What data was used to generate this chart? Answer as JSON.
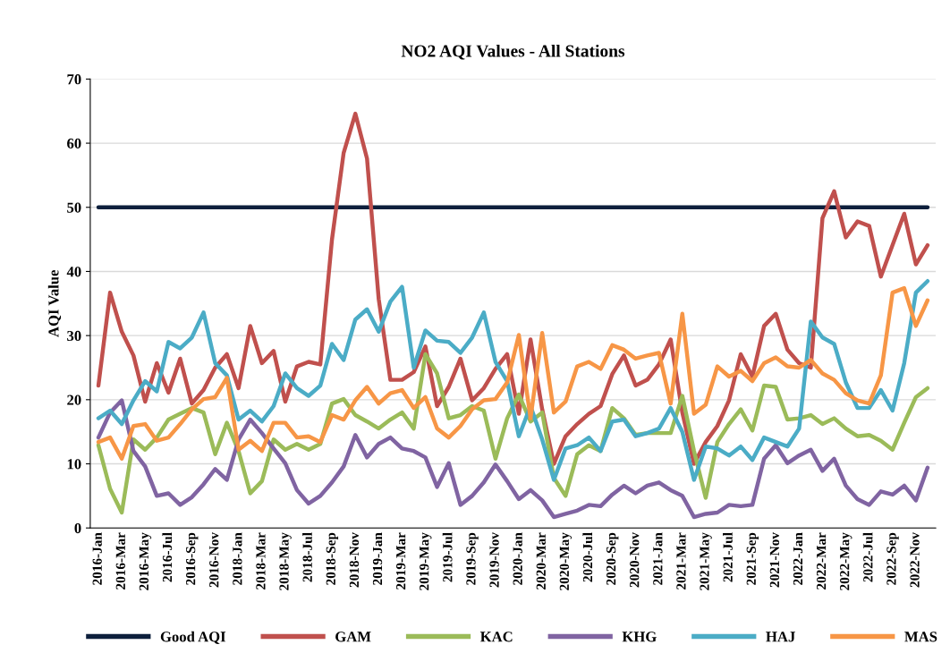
{
  "chart_data": {
    "type": "line",
    "title": "NO2 AQI Values - All Stations",
    "ylabel": "AQI Value",
    "categories": [
      "2016-Jan",
      null,
      "2016-Mar",
      null,
      "2016-May",
      null,
      "2016-Jul",
      null,
      "2016-Sep",
      null,
      "2016-Nov",
      null,
      "2018-Jan",
      null,
      "2018-Mar",
      null,
      "2018-May",
      null,
      "2018-Jul",
      null,
      "2018-Sep",
      null,
      "2018-Nov",
      null,
      "2019-Jan",
      null,
      "2019-Mar",
      null,
      "2019-May",
      null,
      "2019-Jul",
      null,
      "2019-Sep",
      null,
      "2019-Nov",
      null,
      "2020-Jan",
      null,
      "2020-Mar",
      null,
      "2020-May",
      null,
      "2020-Jul",
      null,
      "2020-Sep",
      null,
      "2020-Nov",
      null,
      "2021-Jan",
      null,
      "2021-Mar",
      null,
      "2021-May",
      null,
      "2021-Jul",
      null,
      "2021-Sep",
      null,
      "2021-Nov",
      null,
      "2022-Jan",
      null,
      "2022-Mar",
      null,
      "2022-May",
      null,
      "2022-Jul",
      null,
      "2022-Sep",
      null,
      "2022-Nov",
      null
    ],
    "ylim": [
      0,
      70
    ],
    "yticks": [
      0,
      10,
      20,
      30,
      40,
      50,
      60,
      70
    ],
    "grid": "y",
    "legend": "bottom",
    "marker": "none",
    "line_style": "solid",
    "series": [
      {
        "name": "Good AQI",
        "color": "#0d1f3c",
        "values": [
          50,
          50,
          50,
          50,
          50,
          50,
          50,
          50,
          50,
          50,
          50,
          50,
          50,
          50,
          50,
          50,
          50,
          50,
          50,
          50,
          50,
          50,
          50,
          50,
          50,
          50,
          50,
          50,
          50,
          50,
          50,
          50,
          50,
          50,
          50,
          50,
          50,
          50,
          50,
          50,
          50,
          50,
          50,
          50,
          50,
          50,
          50,
          50,
          50,
          50,
          50,
          50,
          50,
          50,
          50,
          50,
          50,
          50,
          50,
          50,
          50,
          50,
          50,
          50,
          50,
          50,
          50,
          50,
          50,
          50,
          50,
          50
        ]
      },
      {
        "name": "GAM",
        "color": "#c0504d",
        "values": [
          22.2,
          36.7,
          30.6,
          26.9,
          19.7,
          25.7,
          21.1,
          26.4,
          19.4,
          21.5,
          25,
          27.1,
          21.8,
          31.5,
          25.7,
          27.6,
          19.7,
          25.2,
          25.9,
          25.5,
          45,
          58.5,
          64.6,
          57.6,
          35.7,
          23.1,
          23.1,
          24.3,
          28.3,
          19,
          22,
          26.4,
          19.9,
          21.8,
          24.8,
          27.1,
          17.8,
          29.4,
          18.5,
          10,
          14.3,
          16.2,
          17.8,
          19,
          24,
          26.9,
          22.2,
          23.1,
          25.5,
          29.4,
          18,
          10,
          13.4,
          15.9,
          19.9,
          27.1,
          23.6,
          31.5,
          33.4,
          27.8,
          25.7,
          25,
          48.3,
          52.5,
          45.3,
          47.8,
          47.1,
          39.2,
          44.1,
          49,
          41.1,
          44.1
        ]
      },
      {
        "name": "KAC",
        "color": "#9bbb59",
        "values": [
          12.9,
          6.1,
          2.4,
          13.8,
          12.2,
          14.1,
          16.9,
          17.8,
          18.7,
          18,
          11.5,
          16.4,
          12,
          5.4,
          7.3,
          13.8,
          12.2,
          13.1,
          12.2,
          13.1,
          19.4,
          20.1,
          17.6,
          16.6,
          15.5,
          16.9,
          18,
          15.5,
          27.1,
          24.1,
          17.1,
          17.6,
          19,
          18.3,
          10.8,
          17.1,
          20.8,
          16.6,
          18,
          7.8,
          5,
          11.5,
          12.9,
          12,
          18.7,
          17.1,
          14.5,
          14.8,
          14.8,
          14.8,
          20.6,
          12,
          4.7,
          13.4,
          16.2,
          18.5,
          15.2,
          22.2,
          22,
          16.9,
          17.1,
          17.6,
          16.2,
          17.1,
          15.5,
          14.3,
          14.5,
          13.6,
          12.2,
          16.4,
          20.4,
          21.8
        ]
      },
      {
        "name": "KHG",
        "color": "#8064a2",
        "values": [
          14.1,
          18,
          19.9,
          12,
          9.6,
          5,
          5.4,
          3.6,
          4.8,
          6.8,
          9.2,
          7.5,
          13.8,
          16.9,
          14.8,
          12.4,
          10.1,
          5.9,
          3.8,
          5,
          7.1,
          9.6,
          14.5,
          11,
          13.1,
          14.1,
          12.4,
          12,
          11,
          6.4,
          10.1,
          3.6,
          5,
          7.1,
          9.9,
          7.3,
          4.5,
          5.9,
          4.3,
          1.7,
          2.2,
          2.7,
          3.6,
          3.4,
          5.2,
          6.6,
          5.4,
          6.6,
          7.1,
          5.9,
          5,
          1.7,
          2.2,
          2.4,
          3.6,
          3.4,
          3.6,
          10.8,
          12.9,
          10.1,
          11.3,
          12.2,
          8.9,
          10.8,
          6.6,
          4.5,
          3.6,
          5.7,
          5.2,
          6.6,
          4.3,
          9.4
        ]
      },
      {
        "name": "HAJ",
        "color": "#4bacc6",
        "values": [
          17.1,
          18.3,
          16.2,
          19.9,
          22.9,
          21.3,
          29,
          28,
          29.7,
          33.6,
          25.7,
          23.8,
          16.9,
          18.3,
          16.6,
          19,
          24.1,
          21.8,
          20.6,
          22.2,
          28.7,
          26.2,
          32.5,
          34.1,
          30.6,
          35.3,
          37.6,
          25,
          30.8,
          29.2,
          29,
          27.3,
          29.7,
          33.6,
          25.9,
          22.9,
          14.3,
          19,
          13.8,
          7.5,
          12.4,
          12.9,
          14.1,
          12,
          16.6,
          16.9,
          14.3,
          14.8,
          15.5,
          18.7,
          15,
          7.5,
          12.7,
          12.4,
          11.3,
          12.7,
          10.6,
          14.1,
          13.4,
          12.7,
          15.5,
          32.2,
          29.7,
          28.7,
          22.7,
          18.7,
          18.7,
          21.5,
          18.3,
          25.7,
          36.7,
          38.5
        ]
      },
      {
        "name": "MAS",
        "color": "#f79646",
        "values": [
          13.4,
          14.1,
          10.8,
          15.9,
          16.2,
          13.6,
          14.1,
          16.2,
          18.5,
          20.1,
          20.4,
          23.4,
          12.2,
          13.6,
          12,
          16.4,
          16.4,
          14.1,
          14.3,
          13.4,
          17.6,
          16.9,
          19.9,
          22,
          19.4,
          21,
          21.5,
          18.7,
          20.4,
          15.5,
          14.1,
          15.9,
          18.5,
          19.9,
          20.1,
          22.7,
          30.1,
          17.1,
          30.4,
          18,
          19.7,
          25.2,
          25.9,
          24.8,
          28.5,
          27.8,
          26.4,
          26.9,
          27.3,
          19.4,
          33.4,
          17.8,
          19.2,
          25.2,
          23.6,
          24.5,
          22.9,
          25.7,
          26.6,
          25.2,
          25,
          26.2,
          24.1,
          23.1,
          21,
          19.9,
          19.4,
          23.8,
          36.7,
          37.4,
          31.5,
          35.5
        ]
      }
    ]
  }
}
